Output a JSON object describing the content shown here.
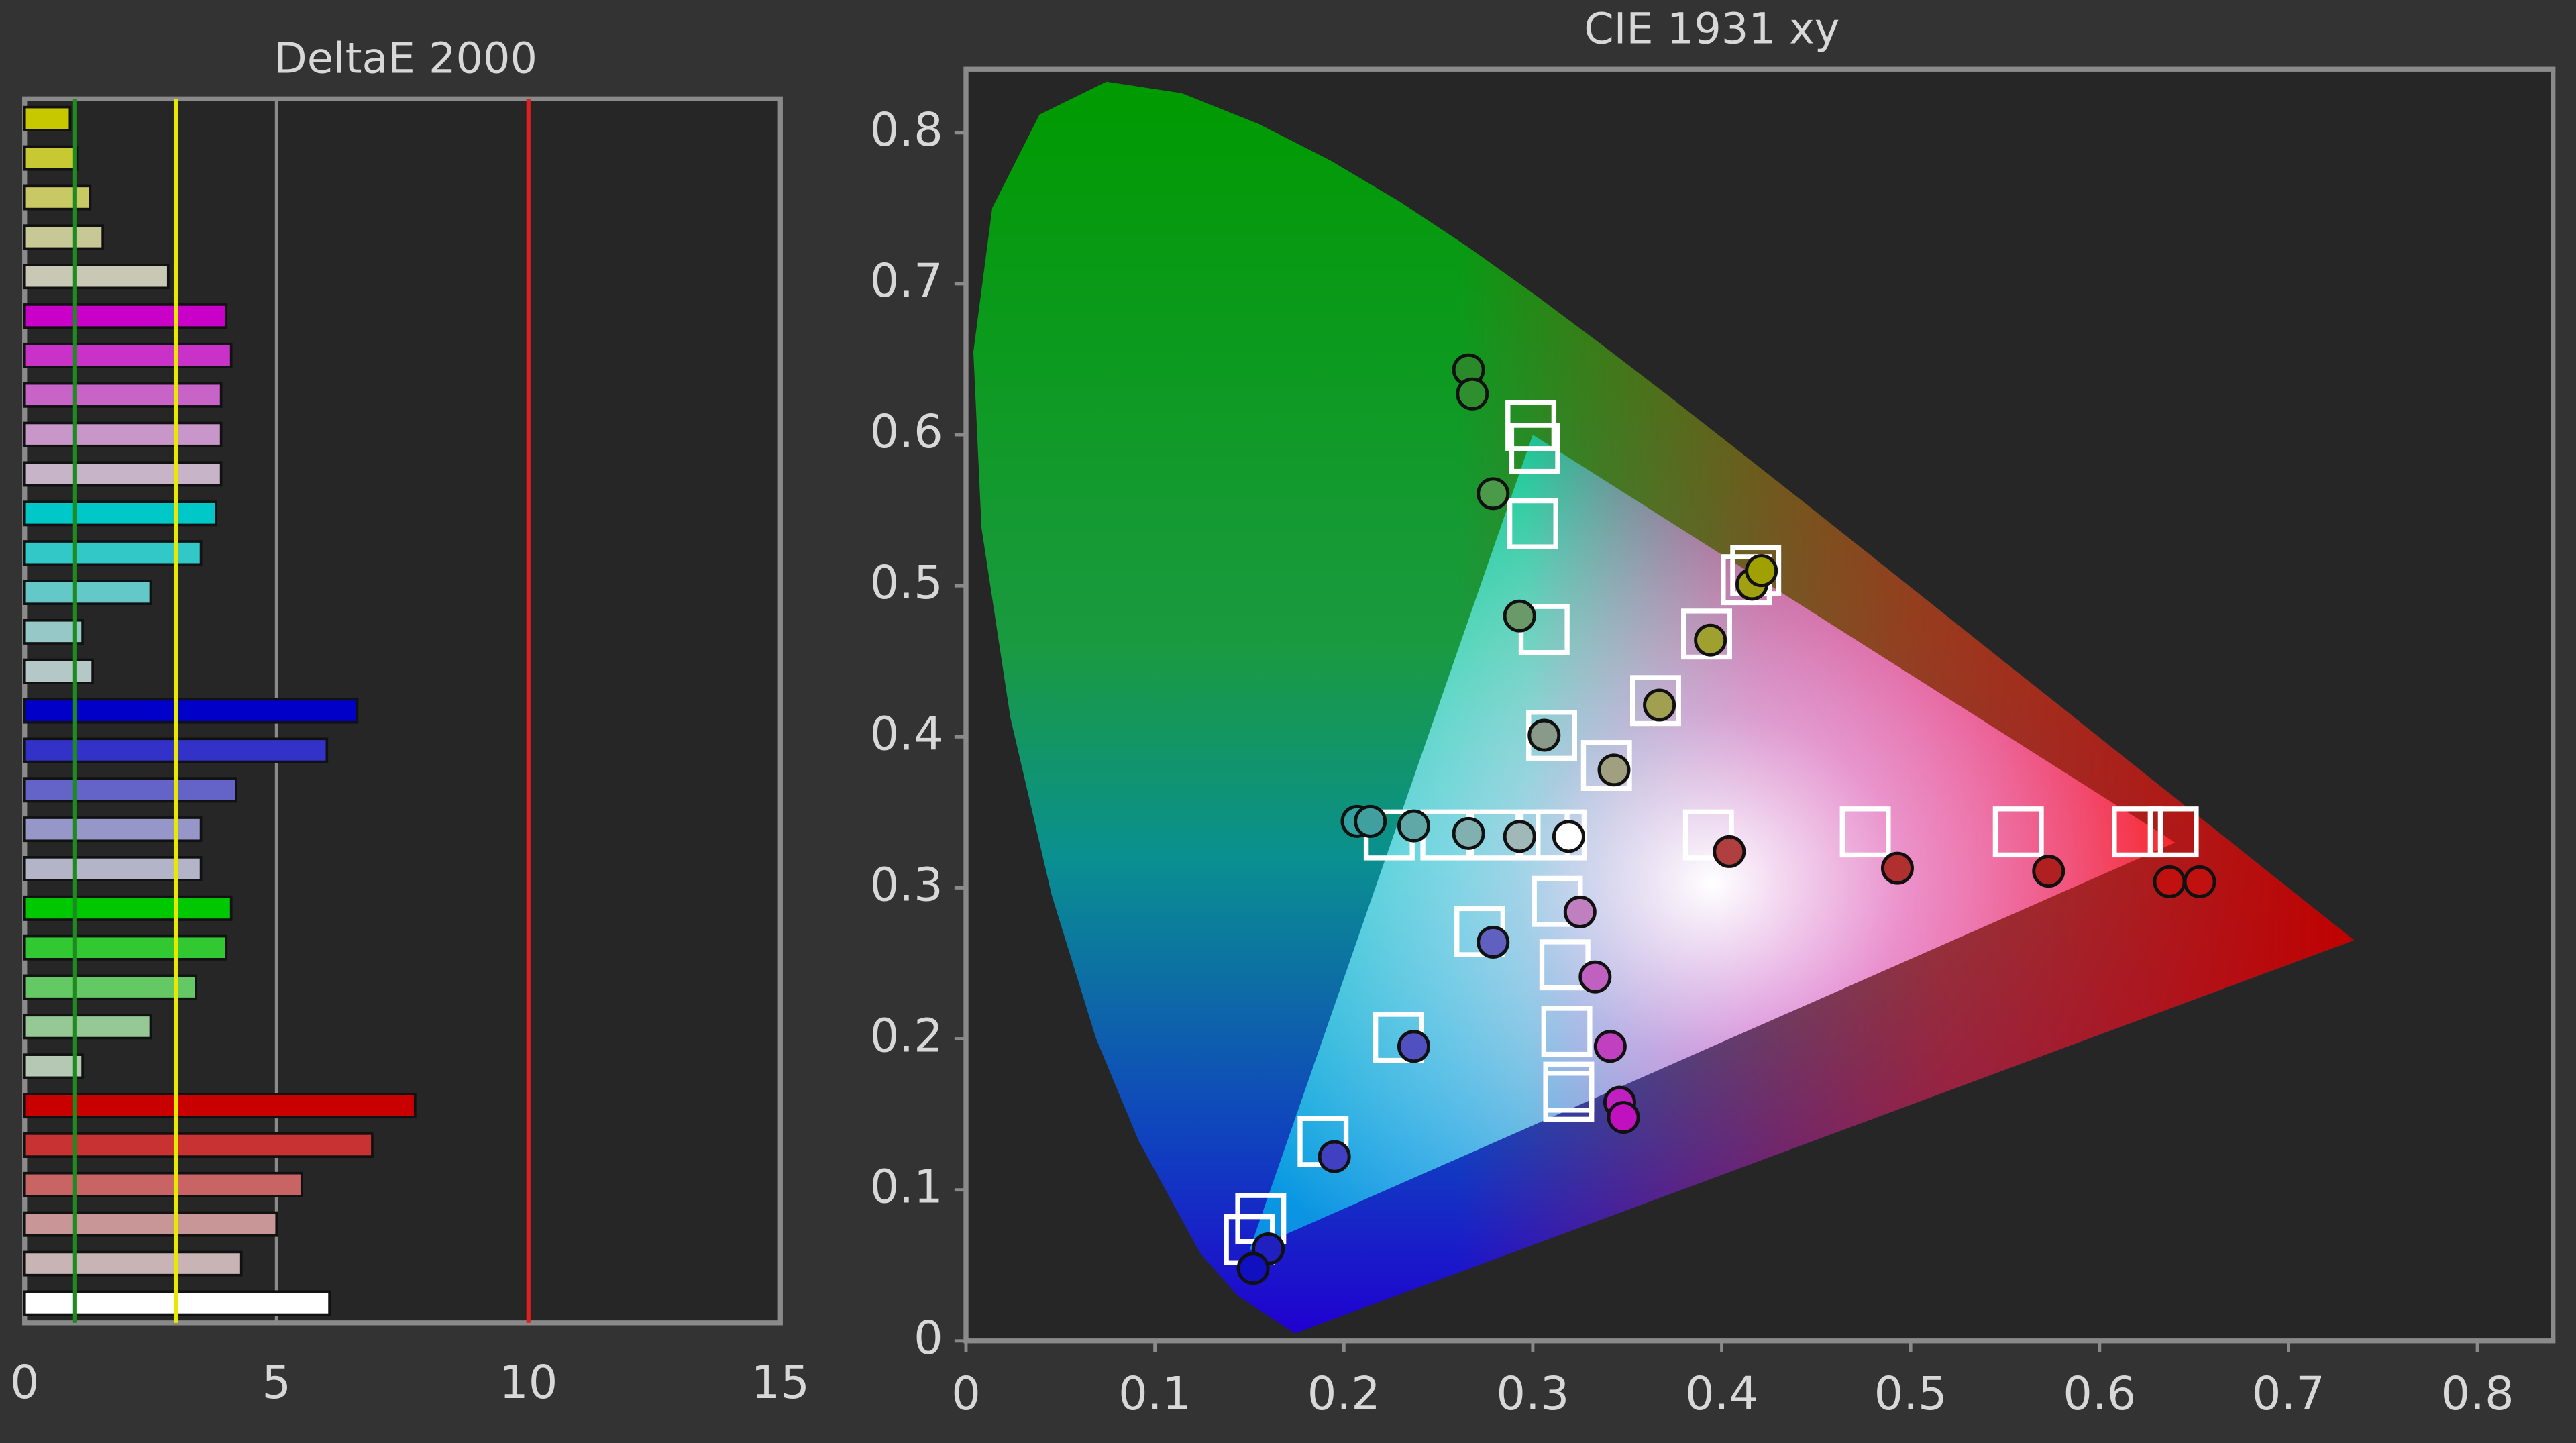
{
  "chart_data": [
    {
      "type": "hbar",
      "title": "DeltaE 2000",
      "categories": [
        null,
        null,
        null,
        null,
        null,
        null,
        null,
        null,
        null,
        null,
        null,
        null,
        null,
        null,
        null,
        null,
        null,
        null,
        null,
        null,
        null,
        null,
        null,
        null,
        null,
        null,
        null,
        null,
        null,
        null,
        null
      ],
      "values": [
        0.9,
        1.05,
        1.3,
        1.55,
        2.85,
        4.0,
        4.1,
        3.9,
        3.9,
        3.9,
        3.8,
        3.5,
        2.5,
        1.15,
        1.35,
        6.6,
        6.0,
        4.2,
        3.5,
        3.5,
        4.1,
        4.0,
        3.4,
        2.5,
        1.15,
        7.75,
        6.9,
        5.5,
        5.0,
        4.3,
        6.05
      ],
      "colors": [
        "#c8c800",
        "#c8c832",
        "#c8c864",
        "#c8c896",
        "#c8c8b4",
        "#c800c8",
        "#c832c8",
        "#c864c8",
        "#c896c8",
        "#c8b4c8",
        "#00c8c8",
        "#32c8c8",
        "#64c8c8",
        "#96c8c8",
        "#b4c8c8",
        "#0000c8",
        "#3232c8",
        "#6464c8",
        "#9696c8",
        "#b4b4c8",
        "#00c800",
        "#32c832",
        "#64c864",
        "#96c896",
        "#b4c8b4",
        "#c80000",
        "#c83232",
        "#c86464",
        "#c89696",
        "#c8b4b4",
        "#ffffff"
      ],
      "xlim": [
        0,
        15
      ],
      "xticks": [
        0,
        5,
        10,
        15
      ],
      "grid": true,
      "reference_lines": [
        {
          "value": 1,
          "color": "#1f8a1f"
        },
        {
          "value": 3,
          "color": "#e8e800"
        },
        {
          "value": 10,
          "color": "#e02020"
        }
      ]
    },
    {
      "type": "scatter",
      "title": "CIE 1931 xy",
      "xlim": [
        0,
        0.84
      ],
      "ylim": [
        0,
        0.842
      ],
      "xticks": [
        0,
        0.1,
        0.2,
        0.3,
        0.4,
        0.5,
        0.6,
        0.7,
        0.8
      ],
      "yticks": [
        0,
        0.1,
        0.2,
        0.3,
        0.4,
        0.5,
        0.6,
        0.7,
        0.8
      ],
      "series": [
        {
          "marker": "square",
          "color": "#ffffff",
          "x": [
            0.299,
            0.301,
            0.3,
            0.306,
            0.31,
            0.339,
            0.365,
            0.392,
            0.413,
            0.418,
            0.393,
            0.476,
            0.557,
            0.62,
            0.639,
            0.313,
            0.317,
            0.318,
            0.319,
            0.319,
            0.272,
            0.229,
            0.189,
            0.156,
            0.15,
            0.224,
            0.254,
            0.28,
            0.306,
            0.315
          ],
          "values": [
            0.606,
            0.591,
            0.541,
            0.471,
            0.401,
            0.381,
            0.424,
            0.468,
            0.504,
            0.51,
            0.335,
            0.337,
            0.337,
            0.337,
            0.337,
            0.291,
            0.249,
            0.205,
            0.168,
            0.162,
            0.271,
            0.201,
            0.132,
            0.081,
            0.067,
            0.335,
            0.335,
            0.335,
            0.335,
            0.335
          ]
        },
        {
          "marker": "circle",
          "x": [
            0.266,
            0.268,
            0.279,
            0.293,
            0.306,
            0.343,
            0.367,
            0.394,
            0.416,
            0.421,
            0.404,
            0.493,
            0.573,
            0.637,
            0.653,
            0.325,
            0.333,
            0.341,
            0.346,
            0.348,
            0.279,
            0.237,
            0.195,
            0.16,
            0.152,
            0.207,
            0.214,
            0.237,
            0.266,
            0.293,
            0.319
          ],
          "values": [
            0.643,
            0.627,
            0.561,
            0.48,
            0.401,
            0.378,
            0.421,
            0.464,
            0.501,
            0.51,
            0.324,
            0.313,
            0.311,
            0.304,
            0.304,
            0.284,
            0.241,
            0.195,
            0.158,
            0.148,
            0.264,
            0.195,
            0.122,
            0.061,
            0.048,
            0.344,
            0.344,
            0.341,
            0.336,
            0.334,
            0.334
          ],
          "colors": [
            "#2a8a2a",
            "#2f8f2f",
            "#4a9a4a",
            "#6a9a6a",
            "#8a9a8a",
            "#a0a080",
            "#a0a050",
            "#a0a030",
            "#a0a010",
            "#a0a000",
            "#b04040",
            "#b03030",
            "#b02020",
            "#c01010",
            "#c01010",
            "#c080c0",
            "#c060c0",
            "#c040c0",
            "#c020c0",
            "#c010c0",
            "#6060c0",
            "#5050c0",
            "#4040c0",
            "#2020c0",
            "#1010c0",
            "#30a0a0",
            "#40a0a0",
            "#60a8a8",
            "#80b0b0",
            "#a0b8b8",
            "#ffffff"
          ]
        }
      ]
    }
  ]
}
